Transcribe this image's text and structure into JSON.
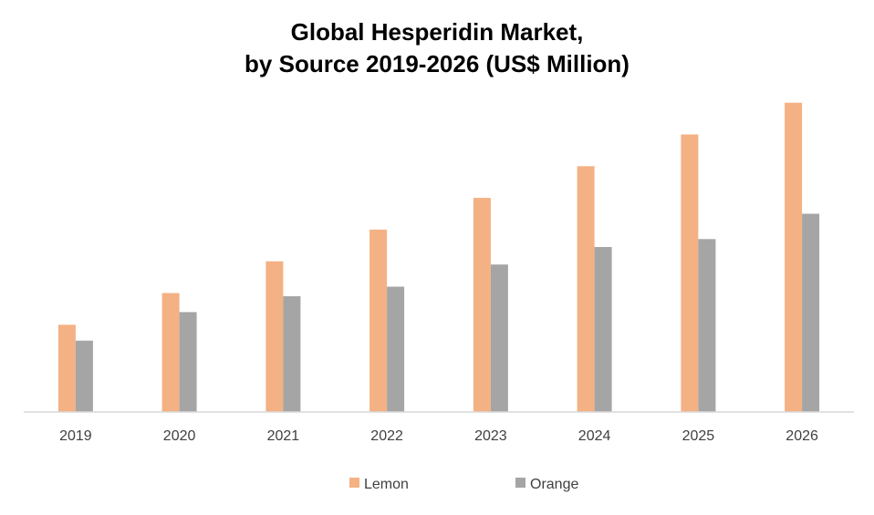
{
  "chart_data": {
    "type": "bar",
    "title_lines": [
      "Global Hesperidin Market,",
      "by Source 2019-2026 (US$ Million)"
    ],
    "categories": [
      "2019",
      "2020",
      "2021",
      "2022",
      "2023",
      "2024",
      "2025",
      "2026"
    ],
    "series": [
      {
        "name": "Lemon",
        "color": "#f4b183",
        "values": [
          27.5,
          37.5,
          47.5,
          57.5,
          67.5,
          77.5,
          87.5,
          97.5
        ]
      },
      {
        "name": "Orange",
        "color": "#a5a5a5",
        "values": [
          22.5,
          31.5,
          36.5,
          39.5,
          46.5,
          52.0,
          54.5,
          62.5
        ]
      }
    ],
    "ylim": [
      0,
      100
    ],
    "grid": false,
    "legend_position": "bottom"
  },
  "colors": {
    "axis_line": "#d9d9d9",
    "text": "#404040"
  }
}
